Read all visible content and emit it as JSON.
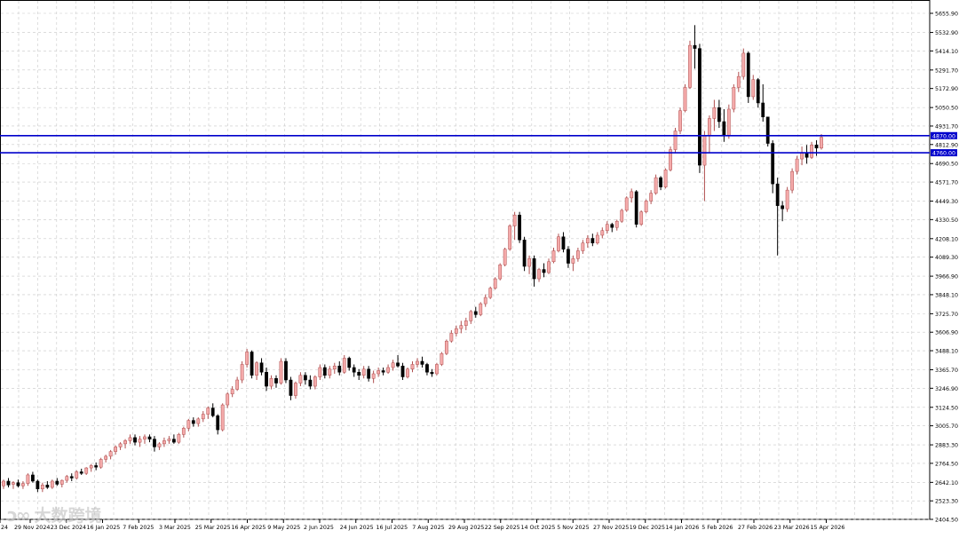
{
  "chart_data": {
    "type": "candlestick",
    "title": "",
    "ylim": [
      2404.5,
      5700
    ],
    "y_ticks": [
      "5655.90",
      "5532.90",
      "5414.10",
      "5291.70",
      "5172.90",
      "5050.50",
      "4931.70",
      "4812.90",
      "4690.50",
      "4571.70",
      "4449.30",
      "4330.50",
      "4208.10",
      "4089.30",
      "3966.90",
      "3848.10",
      "3725.70",
      "3606.90",
      "3488.10",
      "3365.70",
      "3246.90",
      "3124.50",
      "3005.70",
      "2883.30",
      "2764.50",
      "2642.10",
      "2523.30",
      "2404.50"
    ],
    "x_ticks": [
      "24",
      "29 Nov 2024",
      "23 Dec 2024",
      "16 Jan 2025",
      "7 Feb 2025",
      "3 Mar 2025",
      "25 Mar 2025",
      "16 Apr 2025",
      "9 May 2025",
      "2 Jun 2025",
      "24 Jun 2025",
      "16 Jul 2025",
      "7 Aug 2025",
      "29 Aug 2025",
      "22 Sep 2025",
      "14 Oct 2025",
      "5 Nov 2025",
      "27 Nov 2025",
      "19 Dec 2025",
      "14 Jan 2026",
      "5 Feb 2026",
      "27 Feb 2026",
      "23 Mar 2026",
      "15 Apr 2026"
    ],
    "series": [
      {
        "values": [
          [
            2620,
            2660,
            2600,
            2650
          ],
          [
            2650,
            2670,
            2610,
            2625
          ],
          [
            2630,
            2650,
            2600,
            2640
          ],
          [
            2640,
            2660,
            2610,
            2620
          ],
          [
            2620,
            2650,
            2600,
            2635
          ],
          [
            2635,
            2700,
            2620,
            2690
          ],
          [
            2690,
            2710,
            2640,
            2650
          ],
          [
            2650,
            2660,
            2580,
            2600
          ],
          [
            2600,
            2640,
            2580,
            2625
          ],
          [
            2625,
            2650,
            2600,
            2610
          ],
          [
            2610,
            2660,
            2600,
            2650
          ],
          [
            2650,
            2670,
            2620,
            2630
          ],
          [
            2630,
            2660,
            2610,
            2655
          ],
          [
            2655,
            2690,
            2640,
            2680
          ],
          [
            2680,
            2700,
            2650,
            2670
          ],
          [
            2670,
            2720,
            2660,
            2710
          ],
          [
            2710,
            2730,
            2690,
            2700
          ],
          [
            2700,
            2740,
            2690,
            2735
          ],
          [
            2735,
            2760,
            2710,
            2750
          ],
          [
            2750,
            2770,
            2720,
            2740
          ],
          [
            2740,
            2800,
            2730,
            2790
          ],
          [
            2790,
            2820,
            2770,
            2810
          ],
          [
            2810,
            2850,
            2790,
            2840
          ],
          [
            2840,
            2880,
            2820,
            2870
          ],
          [
            2870,
            2900,
            2850,
            2890
          ],
          [
            2890,
            2920,
            2860,
            2910
          ],
          [
            2910,
            2950,
            2890,
            2930
          ],
          [
            2930,
            2950,
            2880,
            2900
          ],
          [
            2900,
            2940,
            2870,
            2920
          ],
          [
            2920,
            2950,
            2890,
            2935
          ],
          [
            2935,
            2950,
            2900,
            2920
          ],
          [
            2920,
            2940,
            2840,
            2870
          ],
          [
            2870,
            2900,
            2850,
            2890
          ],
          [
            2890,
            2930,
            2870,
            2910
          ],
          [
            2910,
            2940,
            2890,
            2920
          ],
          [
            2920,
            2950,
            2890,
            2900
          ],
          [
            2900,
            2960,
            2890,
            2950
          ],
          [
            2950,
            3000,
            2930,
            2990
          ],
          [
            2990,
            3050,
            2970,
            3040
          ],
          [
            3040,
            3060,
            3000,
            3020
          ],
          [
            3020,
            3060,
            3000,
            3050
          ],
          [
            3050,
            3100,
            3030,
            3080
          ],
          [
            3080,
            3130,
            3050,
            3120
          ],
          [
            3120,
            3150,
            3060,
            3070
          ],
          [
            3070,
            3080,
            2950,
            2980
          ],
          [
            2980,
            3150,
            2970,
            3140
          ],
          [
            3140,
            3220,
            3120,
            3210
          ],
          [
            3210,
            3260,
            3190,
            3240
          ],
          [
            3240,
            3320,
            3230,
            3300
          ],
          [
            3300,
            3420,
            3280,
            3400
          ],
          [
            3400,
            3500,
            3380,
            3480
          ],
          [
            3480,
            3490,
            3310,
            3330
          ],
          [
            3330,
            3420,
            3300,
            3410
          ],
          [
            3410,
            3440,
            3330,
            3350
          ],
          [
            3350,
            3380,
            3230,
            3260
          ],
          [
            3260,
            3330,
            3240,
            3310
          ],
          [
            3310,
            3330,
            3250,
            3280
          ],
          [
            3280,
            3440,
            3270,
            3420
          ],
          [
            3420,
            3440,
            3280,
            3300
          ],
          [
            3300,
            3320,
            3170,
            3200
          ],
          [
            3200,
            3290,
            3180,
            3280
          ],
          [
            3280,
            3350,
            3260,
            3330
          ],
          [
            3330,
            3350,
            3270,
            3300
          ],
          [
            3300,
            3330,
            3240,
            3260
          ],
          [
            3260,
            3330,
            3240,
            3320
          ],
          [
            3320,
            3400,
            3300,
            3380
          ],
          [
            3380,
            3400,
            3310,
            3330
          ],
          [
            3330,
            3390,
            3310,
            3370
          ],
          [
            3370,
            3410,
            3340,
            3390
          ],
          [
            3390,
            3420,
            3330,
            3350
          ],
          [
            3350,
            3460,
            3340,
            3440
          ],
          [
            3440,
            3450,
            3360,
            3380
          ],
          [
            3380,
            3400,
            3320,
            3350
          ],
          [
            3350,
            3370,
            3300,
            3330
          ],
          [
            3330,
            3390,
            3310,
            3370
          ],
          [
            3370,
            3390,
            3290,
            3310
          ],
          [
            3310,
            3360,
            3280,
            3340
          ],
          [
            3340,
            3380,
            3320,
            3360
          ],
          [
            3360,
            3380,
            3330,
            3350
          ],
          [
            3350,
            3400,
            3340,
            3380
          ],
          [
            3380,
            3430,
            3360,
            3410
          ],
          [
            3410,
            3460,
            3380,
            3390
          ],
          [
            3390,
            3410,
            3300,
            3320
          ],
          [
            3320,
            3380,
            3310,
            3370
          ],
          [
            3370,
            3420,
            3350,
            3400
          ],
          [
            3400,
            3440,
            3380,
            3420
          ],
          [
            3420,
            3450,
            3380,
            3400
          ],
          [
            3400,
            3410,
            3330,
            3350
          ],
          [
            3350,
            3370,
            3320,
            3340
          ],
          [
            3340,
            3410,
            3330,
            3400
          ],
          [
            3400,
            3480,
            3390,
            3470
          ],
          [
            3470,
            3560,
            3460,
            3550
          ],
          [
            3550,
            3620,
            3540,
            3600
          ],
          [
            3600,
            3650,
            3580,
            3630
          ],
          [
            3630,
            3680,
            3600,
            3650
          ],
          [
            3650,
            3700,
            3620,
            3680
          ],
          [
            3680,
            3750,
            3660,
            3740
          ],
          [
            3740,
            3770,
            3700,
            3720
          ],
          [
            3720,
            3800,
            3710,
            3790
          ],
          [
            3790,
            3850,
            3770,
            3830
          ],
          [
            3830,
            3900,
            3820,
            3890
          ],
          [
            3890,
            3960,
            3880,
            3950
          ],
          [
            3950,
            4050,
            3940,
            4040
          ],
          [
            4040,
            4150,
            4030,
            4140
          ],
          [
            4140,
            4300,
            4130,
            4290
          ],
          [
            4290,
            4380,
            4200,
            4360
          ],
          [
            4360,
            4380,
            4180,
            4200
          ],
          [
            4200,
            4220,
            4000,
            4030
          ],
          [
            4030,
            4100,
            3980,
            4080
          ],
          [
            4080,
            4100,
            3900,
            3950
          ],
          [
            3950,
            4020,
            3930,
            4010
          ],
          [
            4010,
            4050,
            3960,
            3990
          ],
          [
            3990,
            4080,
            3980,
            4060
          ],
          [
            4060,
            4150,
            4050,
            4130
          ],
          [
            4130,
            4240,
            4120,
            4220
          ],
          [
            4220,
            4250,
            4120,
            4140
          ],
          [
            4140,
            4160,
            4020,
            4050
          ],
          [
            4050,
            4100,
            4000,
            4080
          ],
          [
            4080,
            4150,
            4060,
            4130
          ],
          [
            4130,
            4200,
            4110,
            4180
          ],
          [
            4180,
            4230,
            4150,
            4210
          ],
          [
            4210,
            4240,
            4160,
            4180
          ],
          [
            4180,
            4250,
            4170,
            4230
          ],
          [
            4230,
            4280,
            4210,
            4260
          ],
          [
            4260,
            4320,
            4240,
            4300
          ],
          [
            4300,
            4310,
            4250,
            4280
          ],
          [
            4280,
            4330,
            4260,
            4320
          ],
          [
            4320,
            4400,
            4310,
            4390
          ],
          [
            4390,
            4480,
            4380,
            4470
          ],
          [
            4470,
            4530,
            4440,
            4510
          ],
          [
            4510,
            4520,
            4280,
            4300
          ],
          [
            4300,
            4390,
            4290,
            4380
          ],
          [
            4380,
            4460,
            4370,
            4450
          ],
          [
            4450,
            4520,
            4430,
            4500
          ],
          [
            4500,
            4620,
            4490,
            4600
          ],
          [
            4600,
            4610,
            4520,
            4540
          ],
          [
            4540,
            4660,
            4530,
            4650
          ],
          [
            4650,
            4800,
            4640,
            4780
          ],
          [
            4780,
            4920,
            4760,
            4900
          ],
          [
            4900,
            5050,
            4880,
            5030
          ],
          [
            5030,
            5200,
            5020,
            5180
          ],
          [
            5180,
            5480,
            5170,
            5450
          ],
          [
            5450,
            5580,
            5300,
            5430
          ],
          [
            5430,
            5460,
            4630,
            4680
          ],
          [
            4680,
            4900,
            4450,
            4870
          ],
          [
            4870,
            5000,
            4760,
            4980
          ],
          [
            4980,
            5100,
            4900,
            5050
          ],
          [
            5050,
            5100,
            4920,
            4960
          ],
          [
            4960,
            5040,
            4830,
            4870
          ],
          [
            4870,
            5070,
            4850,
            5040
          ],
          [
            5040,
            5200,
            5020,
            5180
          ],
          [
            5180,
            5280,
            5150,
            5250
          ],
          [
            5250,
            5430,
            5230,
            5400
          ],
          [
            5400,
            5410,
            5080,
            5120
          ],
          [
            5120,
            5260,
            5100,
            5230
          ],
          [
            5230,
            5240,
            5050,
            5080
          ],
          [
            5080,
            5200,
            4960,
            4990
          ],
          [
            4990,
            4990,
            4800,
            4820
          ],
          [
            4820,
            4840,
            4500,
            4560
          ],
          [
            4560,
            4600,
            4100,
            4420
          ],
          [
            4420,
            4450,
            4320,
            4400
          ],
          [
            4400,
            4540,
            4380,
            4520
          ],
          [
            4520,
            4660,
            4500,
            4640
          ],
          [
            4640,
            4740,
            4620,
            4720
          ],
          [
            4720,
            4800,
            4680,
            4760
          ],
          [
            4760,
            4810,
            4690,
            4730
          ],
          [
            4730,
            4830,
            4720,
            4810
          ],
          [
            4810,
            4840,
            4740,
            4790
          ],
          [
            4790,
            4880,
            4780,
            4860
          ]
        ]
      }
    ],
    "hlines": [
      {
        "value": 4870.0,
        "label": "4870.00",
        "color": "#0000cc"
      },
      {
        "value": 4760.0,
        "label": "4760.00",
        "color": "#0000cc"
      }
    ],
    "colors": {
      "up": "#f4aaaa",
      "down": "#000000",
      "grid": "#c8c8c8",
      "axis_text": "#000000"
    },
    "grid": true
  },
  "watermark": {
    "logo": "ↄ∞",
    "text": "大数跨境"
  }
}
